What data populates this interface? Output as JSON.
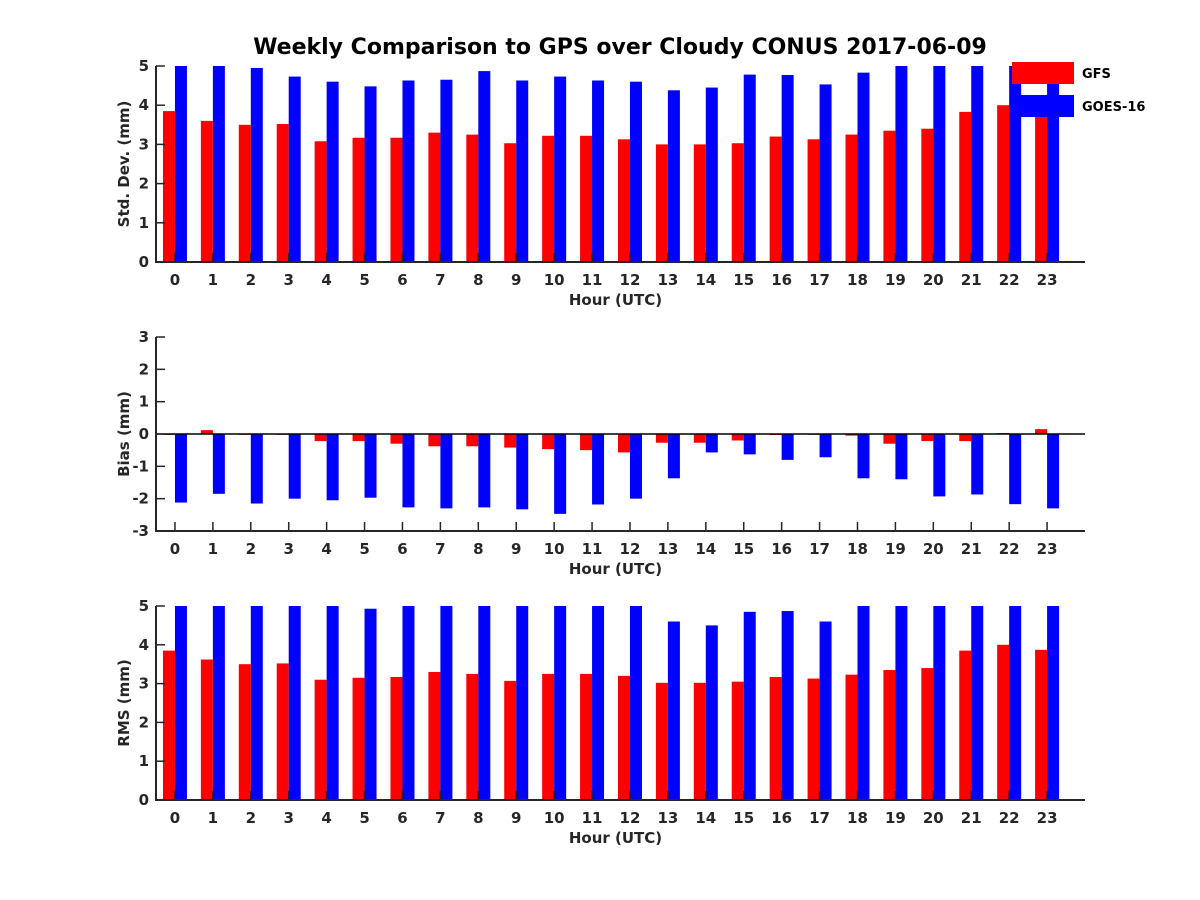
{
  "figure": {
    "title": "Weekly Comparison to GPS over Cloudy CONUS 2017-06-09",
    "colors": {
      "GFS": "#ff0000",
      "GOES-16": "#0000ff"
    }
  },
  "legend": {
    "placement": "top-right",
    "items": [
      "GFS",
      "GOES-16"
    ]
  },
  "chart_data": [
    {
      "type": "bar",
      "xlabel": "Hour (UTC)",
      "ylabel": "Std. Dev. (mm)",
      "ylim": [
        0,
        5
      ],
      "yticks": [
        0,
        1,
        2,
        3,
        4,
        5
      ],
      "categories": [
        "0",
        "1",
        "2",
        "3",
        "4",
        "5",
        "6",
        "7",
        "8",
        "9",
        "10",
        "11",
        "12",
        "13",
        "14",
        "15",
        "16",
        "17",
        "18",
        "19",
        "20",
        "21",
        "22",
        "23"
      ],
      "series": [
        {
          "name": "GFS",
          "values": [
            3.85,
            3.6,
            3.5,
            3.52,
            3.08,
            3.17,
            3.17,
            3.3,
            3.25,
            3.03,
            3.22,
            3.22,
            3.13,
            3.0,
            3.0,
            3.03,
            3.2,
            3.13,
            3.25,
            3.35,
            3.4,
            3.83,
            4.0,
            3.85
          ]
        },
        {
          "name": "GOES-16",
          "values": [
            5.0,
            5.0,
            4.95,
            4.73,
            4.6,
            4.48,
            4.63,
            4.65,
            4.87,
            4.63,
            4.73,
            4.63,
            4.6,
            4.38,
            4.45,
            4.78,
            4.77,
            4.53,
            4.83,
            5.0,
            5.0,
            5.0,
            5.0,
            4.7
          ]
        }
      ]
    },
    {
      "type": "bar",
      "xlabel": "Hour (UTC)",
      "ylabel": "Bias (mm)",
      "ylim": [
        -3,
        3
      ],
      "yticks": [
        -3,
        -2,
        -1,
        0,
        1,
        2,
        3
      ],
      "categories": [
        "0",
        "1",
        "2",
        "3",
        "4",
        "5",
        "6",
        "7",
        "8",
        "9",
        "10",
        "11",
        "12",
        "13",
        "14",
        "15",
        "16",
        "17",
        "18",
        "19",
        "20",
        "21",
        "22",
        "23"
      ],
      "series": [
        {
          "name": "GFS",
          "values": [
            -0.02,
            0.12,
            -0.02,
            -0.02,
            -0.22,
            -0.22,
            -0.3,
            -0.38,
            -0.38,
            -0.42,
            -0.47,
            -0.5,
            -0.57,
            -0.27,
            -0.27,
            -0.2,
            -0.03,
            -0.02,
            -0.05,
            -0.3,
            -0.22,
            -0.22,
            0.03,
            0.15
          ]
        },
        {
          "name": "GOES-16",
          "values": [
            -2.12,
            -1.85,
            -2.15,
            -2.0,
            -2.05,
            -1.97,
            -2.27,
            -2.3,
            -2.27,
            -2.33,
            -2.47,
            -2.18,
            -2.0,
            -1.37,
            -0.57,
            -0.63,
            -0.8,
            -0.72,
            -1.37,
            -1.4,
            -1.93,
            -1.87,
            -2.17,
            -2.3
          ]
        }
      ]
    },
    {
      "type": "bar",
      "xlabel": "Hour (UTC)",
      "ylabel": "RMS (mm)",
      "ylim": [
        0,
        5
      ],
      "yticks": [
        0,
        1,
        2,
        3,
        4,
        5
      ],
      "categories": [
        "0",
        "1",
        "2",
        "3",
        "4",
        "5",
        "6",
        "7",
        "8",
        "9",
        "10",
        "11",
        "12",
        "13",
        "14",
        "15",
        "16",
        "17",
        "18",
        "19",
        "20",
        "21",
        "22",
        "23"
      ],
      "series": [
        {
          "name": "GFS",
          "values": [
            3.85,
            3.62,
            3.5,
            3.52,
            3.1,
            3.15,
            3.17,
            3.3,
            3.25,
            3.07,
            3.25,
            3.25,
            3.2,
            3.02,
            3.02,
            3.05,
            3.17,
            3.13,
            3.23,
            3.35,
            3.4,
            3.85,
            4.0,
            3.87
          ]
        },
        {
          "name": "GOES-16",
          "values": [
            5.0,
            5.0,
            5.0,
            5.0,
            5.0,
            4.93,
            5.0,
            5.0,
            5.0,
            5.0,
            5.0,
            5.0,
            5.0,
            4.6,
            4.5,
            4.85,
            4.87,
            4.6,
            5.0,
            5.0,
            5.0,
            5.0,
            5.0,
            5.0
          ]
        }
      ]
    }
  ]
}
